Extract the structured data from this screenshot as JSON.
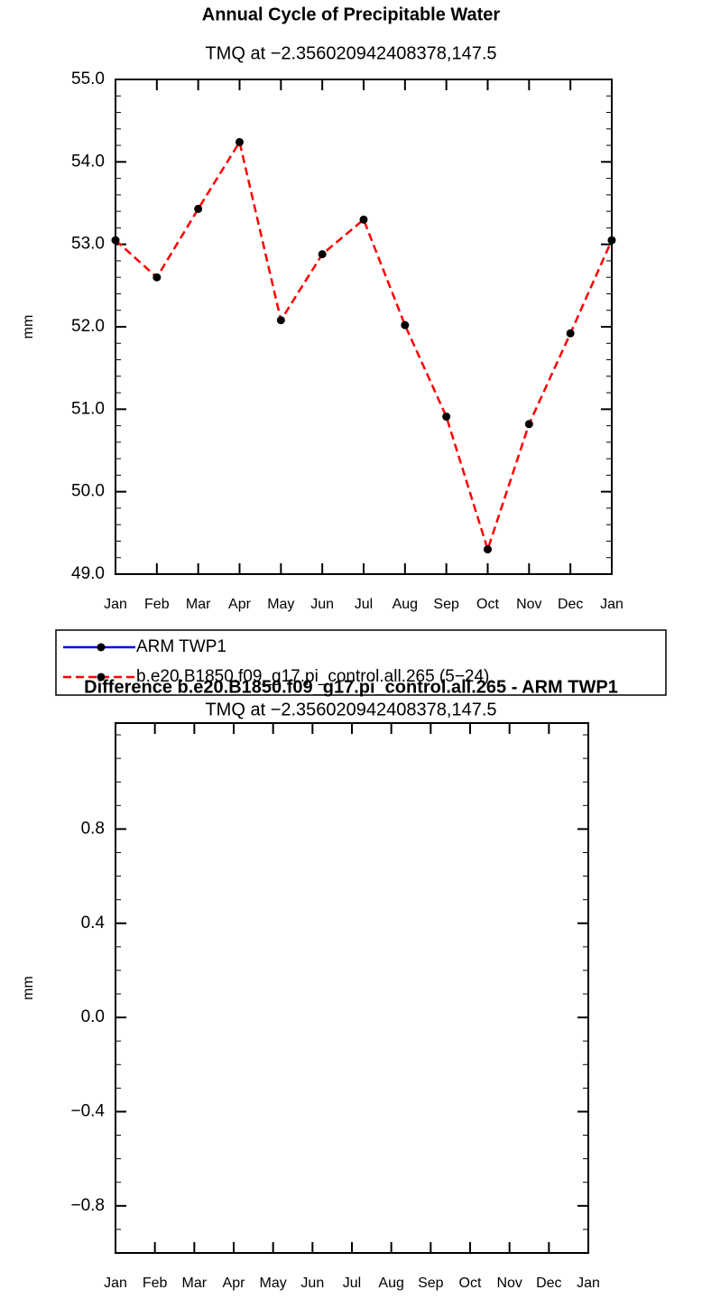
{
  "chart_data": [
    {
      "type": "line",
      "title": "Annual Cycle of Precipitable Water",
      "subtitle": "TMQ at −2.356020942408378,147.5",
      "y_label": "mm",
      "categories": [
        "Jan",
        "Feb",
        "Mar",
        "Apr",
        "May",
        "Jun",
        "Jul",
        "Aug",
        "Sep",
        "Oct",
        "Nov",
        "Dec",
        "Jan"
      ],
      "ylim": [
        49,
        55
      ],
      "yticks": [
        {
          "value": 49,
          "label": "49.0"
        },
        {
          "value": 50,
          "label": "50.0"
        },
        {
          "value": 51,
          "label": "51.0"
        },
        {
          "value": 52,
          "label": "52.0"
        },
        {
          "value": 53,
          "label": "53.0"
        },
        {
          "value": 54,
          "label": "54.0"
        },
        {
          "value": 55,
          "label": "55.0"
        }
      ],
      "series": [
        {
          "name": "ARM TWP1",
          "color": "#0000ff",
          "dash": false,
          "values": [
            null,
            null,
            null,
            null,
            null,
            null,
            null,
            null,
            null,
            null,
            null,
            null,
            null
          ]
        },
        {
          "name": "b.e20.B1850.f09_g17.pi_control.all.265 (5−24)",
          "color": "#ff0000",
          "dash": true,
          "values": [
            53.05,
            52.6,
            53.43,
            54.24,
            52.08,
            52.88,
            53.3,
            52.02,
            50.91,
            49.3,
            50.82,
            51.92,
            53.05
          ]
        }
      ]
    },
    {
      "type": "line",
      "title": "Difference b.e20.B1850.f09_g17.pi_control.all.265 - ARM TWP1",
      "subtitle": "TMQ at −2.356020942408378,147.5",
      "y_label": "mm",
      "categories": [
        "Jan",
        "Feb",
        "Mar",
        "Apr",
        "May",
        "Jun",
        "Jul",
        "Aug",
        "Sep",
        "Oct",
        "Nov",
        "Dec",
        "Jan"
      ],
      "ylim": [
        -1,
        1.25
      ],
      "yticks": [
        {
          "value": -0.8,
          "label": "−0.8"
        },
        {
          "value": -0.4,
          "label": "−0.4"
        },
        {
          "value": 0,
          "label": "0.0"
        },
        {
          "value": 0.4,
          "label": "0.4"
        },
        {
          "value": 0.8,
          "label": "0.8"
        }
      ],
      "series": []
    }
  ]
}
